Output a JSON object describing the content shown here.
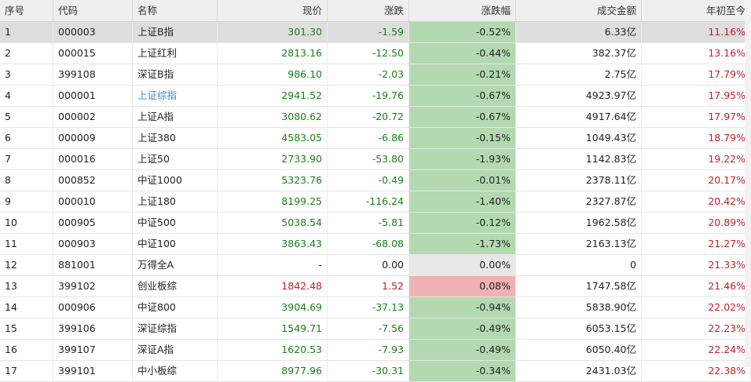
{
  "columns": [
    "序号",
    "代码",
    "名称",
    "现价",
    "涨跌",
    "涨跌幅",
    "成交金额",
    "年初至今"
  ],
  "rows": [
    {
      "seq": "1",
      "code": "000003",
      "name": "上证B指",
      "price": "301.30",
      "chg": "-1.59",
      "pct": "-0.52%",
      "amt": "6.33亿",
      "ytd": "11.16%"
    },
    {
      "seq": "2",
      "code": "000015",
      "name": "上证红利",
      "price": "2813.16",
      "chg": "-12.50",
      "pct": "-0.44%",
      "amt": "382.37亿",
      "ytd": "13.16%"
    },
    {
      "seq": "3",
      "code": "399108",
      "name": "深证B指",
      "price": "986.10",
      "chg": "-2.03",
      "pct": "-0.21%",
      "amt": "2.75亿",
      "ytd": "17.79%"
    },
    {
      "seq": "4",
      "code": "000001",
      "name": "上证综指",
      "price": "2941.52",
      "chg": "-19.76",
      "pct": "-0.67%",
      "amt": "4923.97亿",
      "ytd": "17.95%"
    },
    {
      "seq": "5",
      "code": "000002",
      "name": "上证A指",
      "price": "3080.62",
      "chg": "-20.72",
      "pct": "-0.67%",
      "amt": "4917.64亿",
      "ytd": "17.97%"
    },
    {
      "seq": "6",
      "code": "000009",
      "name": "上证380",
      "price": "4583.05",
      "chg": "-6.86",
      "pct": "-0.15%",
      "amt": "1049.43亿",
      "ytd": "18.79%"
    },
    {
      "seq": "7",
      "code": "000016",
      "name": "上证50",
      "price": "2733.90",
      "chg": "-53.80",
      "pct": "-1.93%",
      "amt": "1142.83亿",
      "ytd": "19.22%"
    },
    {
      "seq": "8",
      "code": "000852",
      "name": "中证1000",
      "price": "5323.76",
      "chg": "-0.49",
      "pct": "-0.01%",
      "amt": "2378.11亿",
      "ytd": "20.17%"
    },
    {
      "seq": "9",
      "code": "000010",
      "name": "上证180",
      "price": "8199.25",
      "chg": "-116.24",
      "pct": "-1.40%",
      "amt": "2327.87亿",
      "ytd": "20.42%"
    },
    {
      "seq": "10",
      "code": "000905",
      "name": "中证500",
      "price": "5038.54",
      "chg": "-5.81",
      "pct": "-0.12%",
      "amt": "1962.58亿",
      "ytd": "20.89%"
    },
    {
      "seq": "11",
      "code": "000903",
      "name": "中证100",
      "price": "3863.43",
      "chg": "-68.08",
      "pct": "-1.73%",
      "amt": "2163.13亿",
      "ytd": "21.27%"
    },
    {
      "seq": "12",
      "code": "881001",
      "name": "万得全A",
      "price": "-",
      "chg": "0.00",
      "pct": "0.00%",
      "amt": "0",
      "ytd": "21.33%"
    },
    {
      "seq": "13",
      "code": "399102",
      "name": "创业板综",
      "price": "1842.48",
      "chg": "1.52",
      "pct": "0.08%",
      "amt": "1747.58亿",
      "ytd": "21.46%"
    },
    {
      "seq": "14",
      "code": "000906",
      "name": "中证800",
      "price": "3904.69",
      "chg": "-37.13",
      "pct": "-0.94%",
      "amt": "5838.90亿",
      "ytd": "22.02%"
    },
    {
      "seq": "15",
      "code": "399106",
      "name": "深证综指",
      "price": "1549.71",
      "chg": "-7.56",
      "pct": "-0.49%",
      "amt": "6053.15亿",
      "ytd": "22.23%"
    },
    {
      "seq": "16",
      "code": "399107",
      "name": "深证A指",
      "price": "1620.53",
      "chg": "-7.93",
      "pct": "-0.49%",
      "amt": "6050.40亿",
      "ytd": "22.24%"
    },
    {
      "seq": "17",
      "code": "399101",
      "name": "中小板综",
      "price": "8977.96",
      "chg": "-30.31",
      "pct": "-0.34%",
      "amt": "2431.03亿",
      "ytd": "22.38%"
    }
  ],
  "colors": {
    "down": "#1a7f1a",
    "up": "#c0202a",
    "link": "#3a8ecf",
    "pct_down_bg": "#b3d9b1",
    "pct_up_bg": "#efb1b3",
    "pct_flat_bg": "#e8e8e8",
    "selected_row_bg": "#dedede"
  }
}
